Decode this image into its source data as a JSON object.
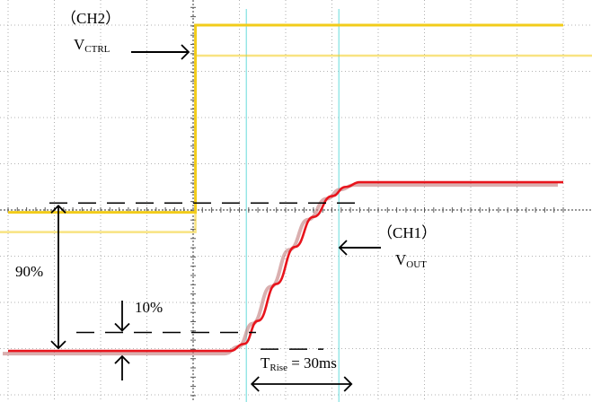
{
  "chart_data": {
    "type": "line",
    "title": "",
    "xlabel": "",
    "ylabel": "",
    "grid": true,
    "colors": {
      "ch1": "#e8141c",
      "ch2": "#f2cc1a",
      "cursor": "#7fe0e0",
      "grid": "#9a9a9a",
      "axis": "#5a5a5a"
    },
    "series": [
      {
        "name": "(CH2) VCTRL",
        "channel": "CH2",
        "symbol": "V",
        "subscript": "CTRL",
        "x": [
          0,
          4.05,
          4.05,
          12.0
        ],
        "y": [
          3.95,
          3.95,
          8.0,
          8.0
        ]
      },
      {
        "name": "(CH1) VOUT",
        "channel": "CH1",
        "symbol": "V",
        "subscript": "OUT",
        "x": [
          0,
          4.8,
          5.1,
          5.4,
          5.8,
          6.2,
          6.6,
          7.0,
          7.3,
          7.6,
          7.8,
          12.0
        ],
        "y": [
          0.95,
          0.95,
          1.1,
          1.6,
          2.4,
          3.2,
          3.85,
          4.3,
          4.5,
          4.6,
          4.6,
          4.6
        ]
      }
    ],
    "cursors": [
      5.15,
      7.15
    ],
    "annotations": {
      "ch2_label": "（CH2）",
      "ch1_label": "（CH1）",
      "pct_90": "90%",
      "pct_10": "10%",
      "rise_symbol": "T",
      "rise_sub": "Rise",
      "rise_value": " = 30ms"
    }
  }
}
